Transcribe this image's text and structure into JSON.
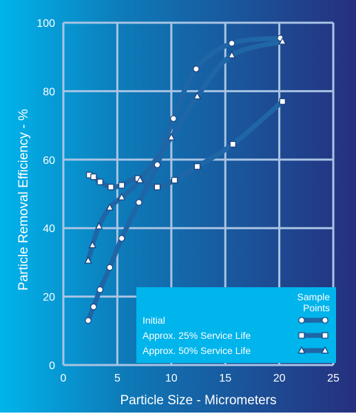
{
  "chart_data": {
    "type": "line",
    "xlabel": "Particle Size - Micrometers",
    "ylabel": "Particle Removal Efficiency - %",
    "xlim": [
      0,
      25
    ],
    "ylim": [
      0,
      100
    ],
    "x_ticks": [
      "0",
      "5",
      "10",
      "15",
      "20",
      "25"
    ],
    "y_ticks": [
      "0",
      "20",
      "40",
      "60",
      "80",
      "100"
    ],
    "grid": true,
    "legend": {
      "placement": "bottom-right",
      "header_line1": "Sample",
      "header_line2": "Points"
    },
    "series": [
      {
        "name": "Initial",
        "marker": "circle",
        "x": [
          2.3,
          2.8,
          3.4,
          4.3,
          5.4,
          7.0,
          8.7,
          10.2,
          12.3,
          15.6,
          20.1
        ],
        "y": [
          13,
          17,
          22,
          28.5,
          37,
          47.5,
          58.5,
          72,
          86.5,
          94,
          95.5
        ]
      },
      {
        "name": "Approx. 25% Service Life",
        "marker": "square",
        "x": [
          2.4,
          2.8,
          3.4,
          4.4,
          5.4,
          6.9,
          8.7,
          10.3,
          12.4,
          15.7,
          20.3
        ],
        "y": [
          55.5,
          55,
          53.5,
          52,
          52.5,
          54.5,
          52,
          54,
          58,
          64.5,
          77
        ]
      },
      {
        "name": "Approx. 50% Service Life",
        "marker": "triangle",
        "x": [
          2.3,
          2.7,
          3.3,
          4.3,
          5.4,
          7.1,
          10.0,
          12.4,
          15.6,
          20.3
        ],
        "y": [
          30.5,
          35,
          40.5,
          46,
          49,
          54,
          66.5,
          78.5,
          90.5,
          94.5
        ]
      }
    ]
  },
  "colors": {
    "background_left": "#00b4ec",
    "background_right": "#26307e",
    "line": "#1f66a6",
    "grid": "#a9c4e4",
    "text": "#ffffff",
    "legend_box": "#00b4ec",
    "marker_fill": "#ffffff",
    "marker_stroke": "#1a3f7a"
  }
}
